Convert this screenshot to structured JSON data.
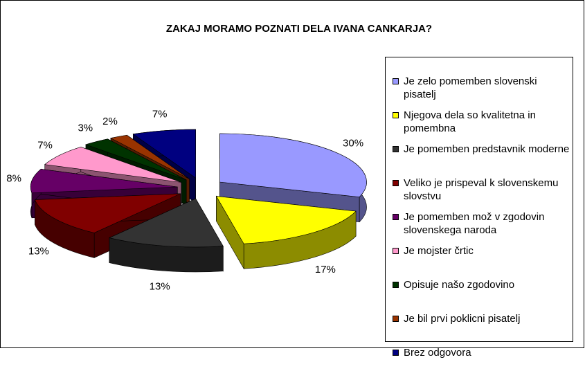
{
  "chart_data": {
    "type": "pie3d",
    "title": "ZAKAJ MORAMO POZNATI DELA IVANA CANKARJA?",
    "categories": [
      "Je zelo pomemben slovenski pisatelj",
      "Njegova dela so kvalitetna in pomembna",
      "Je pomemben predstavnik moderne",
      "Veliko je prispeval k slovenskemu slovstvu",
      "Je pomemben mož v zgodovin slovenskega naroda",
      "Je  mojster črtic",
      "Opisuje našo zgodovino",
      "Je bil prvi poklicni pisatelj",
      "Brez odgovora"
    ],
    "values": [
      30,
      17,
      13,
      13,
      8,
      7,
      3,
      2,
      7
    ],
    "value_labels": [
      "30%",
      "17%",
      "13%",
      "13%",
      "8%",
      "7%",
      "3%",
      "2%",
      "7%"
    ],
    "colors": [
      "#9999ff",
      "#ffff00",
      "#333333",
      "#800000",
      "#660066",
      "#ff99cc",
      "#003300",
      "#993300",
      "#000080"
    ],
    "legend": "right"
  }
}
